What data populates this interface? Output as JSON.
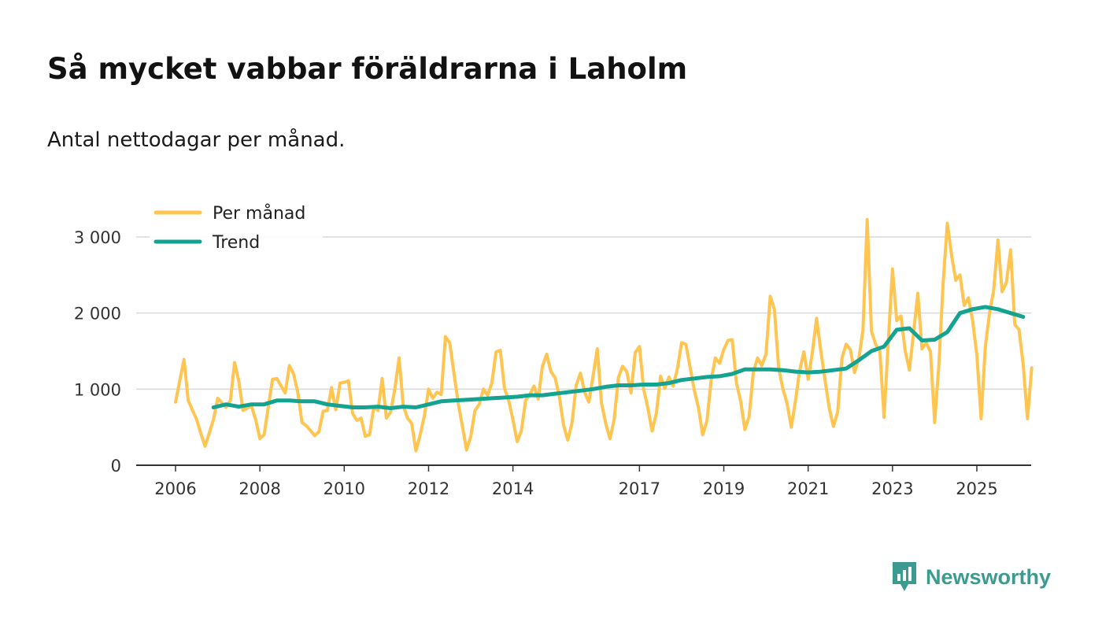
{
  "header": {
    "title": "Så mycket vabbar föräldrarna i Laholm",
    "subtitle": "Antal nettodagar per månad."
  },
  "brand": {
    "name": "Newsworthy",
    "icon": "newsworthy-logo-icon",
    "color": "#3c9b91"
  },
  "colors": {
    "monthly": "#ffc550",
    "trend": "#14a391",
    "grid": "#d9d9d9",
    "axis": "#333333"
  },
  "chart_data": {
    "type": "line",
    "title": "Så mycket vabbar föräldrarna i Laholm",
    "subtitle": "Antal nettodagar per månad.",
    "xlabel": "",
    "ylabel": "",
    "xlim": [
      2005.1,
      2026.3
    ],
    "ylim": [
      0,
      3100
    ],
    "grid": true,
    "legend_position": "top-left",
    "x_ticks": [
      {
        "value": 2006,
        "label": "2006"
      },
      {
        "value": 2008,
        "label": "2008"
      },
      {
        "value": 2010,
        "label": "2010"
      },
      {
        "value": 2012,
        "label": "2012"
      },
      {
        "value": 2014,
        "label": "2014"
      },
      {
        "value": 2017,
        "label": "2017"
      },
      {
        "value": 2019,
        "label": "2019"
      },
      {
        "value": 2021,
        "label": "2021"
      },
      {
        "value": 2023,
        "label": "2023"
      },
      {
        "value": 2025,
        "label": "2025"
      }
    ],
    "y_ticks": [
      {
        "value": 0,
        "label": "0"
      },
      {
        "value": 1000,
        "label": "1 000"
      },
      {
        "value": 2000,
        "label": "2 000"
      },
      {
        "value": 3000,
        "label": "3 000"
      }
    ],
    "series": [
      {
        "name": "Per månad",
        "color": "#ffc550",
        "points": [
          [
            2006.0,
            830
          ],
          [
            2006.2,
            1390
          ],
          [
            2006.3,
            850
          ],
          [
            2006.5,
            600
          ],
          [
            2006.6,
            420
          ],
          [
            2006.7,
            250
          ],
          [
            2006.9,
            600
          ],
          [
            2007.0,
            880
          ],
          [
            2007.2,
            760
          ],
          [
            2007.3,
            850
          ],
          [
            2007.4,
            1350
          ],
          [
            2007.5,
            1100
          ],
          [
            2007.6,
            720
          ],
          [
            2007.8,
            780
          ],
          [
            2007.9,
            600
          ],
          [
            2008.0,
            350
          ],
          [
            2008.1,
            400
          ],
          [
            2008.3,
            1130
          ],
          [
            2008.4,
            1140
          ],
          [
            2008.6,
            950
          ],
          [
            2008.7,
            1310
          ],
          [
            2008.8,
            1200
          ],
          [
            2008.9,
            950
          ],
          [
            2009.0,
            560
          ],
          [
            2009.1,
            520
          ],
          [
            2009.3,
            390
          ],
          [
            2009.4,
            440
          ],
          [
            2009.5,
            710
          ],
          [
            2009.6,
            720
          ],
          [
            2009.7,
            1020
          ],
          [
            2009.8,
            730
          ],
          [
            2009.9,
            1080
          ],
          [
            2010.0,
            1090
          ],
          [
            2010.1,
            1110
          ],
          [
            2010.2,
            680
          ],
          [
            2010.3,
            590
          ],
          [
            2010.4,
            620
          ],
          [
            2010.5,
            380
          ],
          [
            2010.6,
            400
          ],
          [
            2010.7,
            760
          ],
          [
            2010.8,
            720
          ],
          [
            2010.9,
            1140
          ],
          [
            2011.0,
            620
          ],
          [
            2011.1,
            700
          ],
          [
            2011.2,
            1000
          ],
          [
            2011.3,
            1410
          ],
          [
            2011.4,
            780
          ],
          [
            2011.5,
            620
          ],
          [
            2011.6,
            550
          ],
          [
            2011.7,
            190
          ],
          [
            2011.8,
            400
          ],
          [
            2011.9,
            650
          ],
          [
            2012.0,
            1000
          ],
          [
            2012.1,
            880
          ],
          [
            2012.2,
            960
          ],
          [
            2012.3,
            930
          ],
          [
            2012.4,
            1690
          ],
          [
            2012.5,
            1610
          ],
          [
            2012.7,
            820
          ],
          [
            2012.8,
            520
          ],
          [
            2012.9,
            200
          ],
          [
            2013.0,
            380
          ],
          [
            2013.1,
            720
          ],
          [
            2013.2,
            800
          ],
          [
            2013.3,
            1000
          ],
          [
            2013.4,
            920
          ],
          [
            2013.5,
            1080
          ],
          [
            2013.6,
            1490
          ],
          [
            2013.7,
            1510
          ],
          [
            2013.8,
            1010
          ],
          [
            2013.9,
            850
          ],
          [
            2014.0,
            600
          ],
          [
            2014.1,
            310
          ],
          [
            2014.2,
            450
          ],
          [
            2014.3,
            850
          ],
          [
            2014.4,
            930
          ],
          [
            2014.5,
            1040
          ],
          [
            2014.6,
            870
          ],
          [
            2014.7,
            1300
          ],
          [
            2014.8,
            1460
          ],
          [
            2014.9,
            1230
          ],
          [
            2015.0,
            1150
          ],
          [
            2015.1,
            900
          ],
          [
            2015.2,
            530
          ],
          [
            2015.3,
            330
          ],
          [
            2015.4,
            550
          ],
          [
            2015.5,
            1050
          ],
          [
            2015.6,
            1210
          ],
          [
            2015.7,
            960
          ],
          [
            2015.8,
            830
          ],
          [
            2015.9,
            1170
          ],
          [
            2016.0,
            1530
          ],
          [
            2016.1,
            820
          ],
          [
            2016.2,
            550
          ],
          [
            2016.3,
            350
          ],
          [
            2016.4,
            600
          ],
          [
            2016.5,
            1150
          ],
          [
            2016.6,
            1300
          ],
          [
            2016.7,
            1230
          ],
          [
            2016.8,
            950
          ],
          [
            2016.9,
            1480
          ],
          [
            2017.0,
            1560
          ],
          [
            2017.1,
            1000
          ],
          [
            2017.2,
            750
          ],
          [
            2017.3,
            450
          ],
          [
            2017.4,
            680
          ],
          [
            2017.5,
            1170
          ],
          [
            2017.6,
            1010
          ],
          [
            2017.7,
            1160
          ],
          [
            2017.8,
            1040
          ],
          [
            2017.9,
            1270
          ],
          [
            2018.0,
            1610
          ],
          [
            2018.1,
            1590
          ],
          [
            2018.3,
            990
          ],
          [
            2018.4,
            750
          ],
          [
            2018.5,
            400
          ],
          [
            2018.6,
            580
          ],
          [
            2018.7,
            1120
          ],
          [
            2018.8,
            1410
          ],
          [
            2018.9,
            1340
          ],
          [
            2019.0,
            1520
          ],
          [
            2019.1,
            1640
          ],
          [
            2019.2,
            1650
          ],
          [
            2019.3,
            1080
          ],
          [
            2019.4,
            840
          ],
          [
            2019.5,
            470
          ],
          [
            2019.6,
            640
          ],
          [
            2019.7,
            1220
          ],
          [
            2019.8,
            1410
          ],
          [
            2019.9,
            1310
          ],
          [
            2020.0,
            1460
          ],
          [
            2020.1,
            2220
          ],
          [
            2020.2,
            2050
          ],
          [
            2020.3,
            1280
          ],
          [
            2020.4,
            1010
          ],
          [
            2020.5,
            810
          ],
          [
            2020.6,
            500
          ],
          [
            2020.7,
            850
          ],
          [
            2020.8,
            1250
          ],
          [
            2020.9,
            1490
          ],
          [
            2021.0,
            1130
          ],
          [
            2021.1,
            1480
          ],
          [
            2021.2,
            1930
          ],
          [
            2021.3,
            1500
          ],
          [
            2021.4,
            1120
          ],
          [
            2021.5,
            750
          ],
          [
            2021.6,
            510
          ],
          [
            2021.7,
            700
          ],
          [
            2021.8,
            1400
          ],
          [
            2021.9,
            1590
          ],
          [
            2022.0,
            1520
          ],
          [
            2022.1,
            1220
          ],
          [
            2022.2,
            1400
          ],
          [
            2022.3,
            1770
          ],
          [
            2022.4,
            3230
          ],
          [
            2022.5,
            1760
          ],
          [
            2022.6,
            1590
          ],
          [
            2022.7,
            1500
          ],
          [
            2022.8,
            630
          ],
          [
            2022.9,
            1620
          ],
          [
            2023.0,
            2580
          ],
          [
            2023.1,
            1900
          ],
          [
            2023.2,
            1960
          ],
          [
            2023.3,
            1510
          ],
          [
            2023.4,
            1250
          ],
          [
            2023.5,
            1740
          ],
          [
            2023.6,
            2260
          ],
          [
            2023.7,
            1530
          ],
          [
            2023.8,
            1610
          ],
          [
            2023.9,
            1490
          ],
          [
            2024.0,
            560
          ],
          [
            2024.1,
            1330
          ],
          [
            2024.2,
            2380
          ],
          [
            2024.3,
            3180
          ],
          [
            2024.4,
            2760
          ],
          [
            2024.5,
            2430
          ],
          [
            2024.6,
            2500
          ],
          [
            2024.7,
            2100
          ],
          [
            2024.8,
            2200
          ],
          [
            2024.9,
            1900
          ],
          [
            2025.0,
            1450
          ],
          [
            2025.1,
            610
          ],
          [
            2025.2,
            1550
          ],
          [
            2025.3,
            2000
          ],
          [
            2025.4,
            2300
          ],
          [
            2025.5,
            2960
          ],
          [
            2025.6,
            2280
          ],
          [
            2025.7,
            2400
          ],
          [
            2025.8,
            2830
          ],
          [
            2025.9,
            1850
          ],
          [
            2026.0,
            1780
          ],
          [
            2026.1,
            1320
          ],
          [
            2026.2,
            610
          ],
          [
            2026.3,
            1280
          ]
        ]
      },
      {
        "name": "Trend",
        "color": "#14a391",
        "points": [
          [
            2006.9,
            760
          ],
          [
            2007.2,
            800
          ],
          [
            2007.5,
            770
          ],
          [
            2007.8,
            800
          ],
          [
            2008.1,
            800
          ],
          [
            2008.4,
            850
          ],
          [
            2008.7,
            850
          ],
          [
            2009.0,
            840
          ],
          [
            2009.3,
            840
          ],
          [
            2009.6,
            800
          ],
          [
            2009.9,
            780
          ],
          [
            2010.2,
            760
          ],
          [
            2010.5,
            760
          ],
          [
            2010.8,
            770
          ],
          [
            2011.1,
            750
          ],
          [
            2011.4,
            770
          ],
          [
            2011.7,
            760
          ],
          [
            2012.0,
            800
          ],
          [
            2012.3,
            840
          ],
          [
            2012.6,
            850
          ],
          [
            2012.9,
            860
          ],
          [
            2013.2,
            870
          ],
          [
            2013.5,
            880
          ],
          [
            2013.8,
            890
          ],
          [
            2014.1,
            900
          ],
          [
            2014.4,
            920
          ],
          [
            2014.7,
            920
          ],
          [
            2015.0,
            940
          ],
          [
            2015.3,
            960
          ],
          [
            2015.6,
            980
          ],
          [
            2015.9,
            1000
          ],
          [
            2016.2,
            1030
          ],
          [
            2016.5,
            1050
          ],
          [
            2016.8,
            1050
          ],
          [
            2017.1,
            1060
          ],
          [
            2017.4,
            1060
          ],
          [
            2017.7,
            1080
          ],
          [
            2018.0,
            1120
          ],
          [
            2018.3,
            1140
          ],
          [
            2018.6,
            1160
          ],
          [
            2018.9,
            1170
          ],
          [
            2019.2,
            1200
          ],
          [
            2019.5,
            1260
          ],
          [
            2019.8,
            1260
          ],
          [
            2020.1,
            1260
          ],
          [
            2020.4,
            1250
          ],
          [
            2020.7,
            1230
          ],
          [
            2021.0,
            1220
          ],
          [
            2021.3,
            1230
          ],
          [
            2021.6,
            1250
          ],
          [
            2021.9,
            1270
          ],
          [
            2022.2,
            1380
          ],
          [
            2022.5,
            1500
          ],
          [
            2022.8,
            1560
          ],
          [
            2023.1,
            1780
          ],
          [
            2023.4,
            1800
          ],
          [
            2023.7,
            1640
          ],
          [
            2024.0,
            1650
          ],
          [
            2024.3,
            1750
          ],
          [
            2024.6,
            2000
          ],
          [
            2024.9,
            2050
          ],
          [
            2025.2,
            2080
          ],
          [
            2025.5,
            2050
          ],
          [
            2025.8,
            2000
          ],
          [
            2026.1,
            1950
          ]
        ]
      }
    ]
  }
}
